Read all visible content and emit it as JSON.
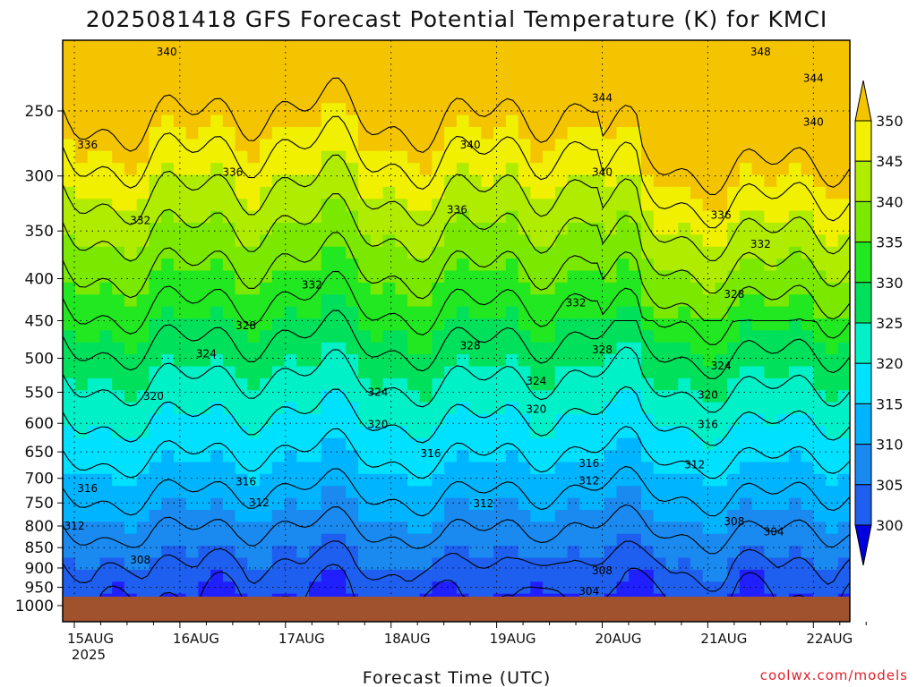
{
  "chart_data": {
    "type": "heatmap",
    "title": "2025081418 GFS Forecast Potential Temperature (K) for KMCI",
    "xlabel": "Forecast Time (UTC)",
    "ylabel": "",
    "y_scale": "log",
    "y_reversed": true,
    "ylim": [
      1000,
      200
    ],
    "y_ticks": [
      250,
      300,
      350,
      400,
      450,
      500,
      550,
      600,
      650,
      700,
      750,
      800,
      850,
      900,
      950,
      1000
    ],
    "x_range": [
      "2025-08-15T00",
      "2025-08-22T12"
    ],
    "x_ticks": [
      {
        "date": "2025-08-15T00",
        "label": "15AUG",
        "sublabel": "2025"
      },
      {
        "date": "2025-08-16T00",
        "label": "16AUG"
      },
      {
        "date": "2025-08-17T00",
        "label": "17AUG"
      },
      {
        "date": "2025-08-18T00",
        "label": "18AUG"
      },
      {
        "date": "2025-08-19T00",
        "label": "19AUG"
      },
      {
        "date": "2025-08-20T00",
        "label": "20AUG"
      },
      {
        "date": "2025-08-21T00",
        "label": "21AUG"
      },
      {
        "date": "2025-08-22T00",
        "label": "22AUG"
      }
    ],
    "grid": true,
    "ground_level_hpa": 975,
    "ground_color": "#a0522d",
    "colorbar": {
      "levels": [
        300,
        305,
        310,
        315,
        320,
        325,
        330,
        335,
        340,
        345,
        350
      ],
      "labels": [
        "300",
        "305",
        "310",
        "315",
        "320",
        "325",
        "330",
        "335",
        "340",
        "345",
        "350"
      ],
      "colors": [
        "#1f1fff",
        "#1f5fef",
        "#1a8af0",
        "#00b4ff",
        "#00e1ff",
        "#00f0c8",
        "#00e05a",
        "#21e821",
        "#7be800",
        "#b0ec00",
        "#f0f000",
        "#f5c400"
      ],
      "extend": "both"
    },
    "contour_interval": 4,
    "contour_labels": [
      {
        "time": "2025-08-15T21",
        "hpa": 212,
        "value": "340"
      },
      {
        "time": "2025-08-18T18",
        "hpa": 275,
        "value": "340"
      },
      {
        "time": "2025-08-20T00",
        "hpa": 241,
        "value": "344"
      },
      {
        "time": "2025-08-21T12",
        "hpa": 212,
        "value": "348"
      },
      {
        "time": "2025-08-22T00",
        "hpa": 228,
        "value": "344"
      },
      {
        "time": "2025-08-22T00",
        "hpa": 258,
        "value": "340"
      },
      {
        "time": "2025-08-20T00",
        "hpa": 297,
        "value": "340"
      },
      {
        "time": "2025-08-15T03",
        "hpa": 275,
        "value": "336"
      },
      {
        "time": "2025-08-16T12",
        "hpa": 297,
        "value": "336"
      },
      {
        "time": "2025-08-18T15",
        "hpa": 330,
        "value": "336"
      },
      {
        "time": "2025-08-21T03",
        "hpa": 335,
        "value": "336"
      },
      {
        "time": "2025-08-15T15",
        "hpa": 340,
        "value": "332"
      },
      {
        "time": "2025-08-17T06",
        "hpa": 407,
        "value": "332"
      },
      {
        "time": "2025-08-19T18",
        "hpa": 428,
        "value": "332"
      },
      {
        "time": "2025-08-21T12",
        "hpa": 363,
        "value": "332"
      },
      {
        "time": "2025-08-16T15",
        "hpa": 456,
        "value": "328"
      },
      {
        "time": "2025-08-18T18",
        "hpa": 483,
        "value": "328"
      },
      {
        "time": "2025-08-20T00",
        "hpa": 488,
        "value": "328"
      },
      {
        "time": "2025-08-21T06",
        "hpa": 418,
        "value": "328"
      },
      {
        "time": "2025-08-16T06",
        "hpa": 494,
        "value": "324"
      },
      {
        "time": "2025-08-17T21",
        "hpa": 550,
        "value": "324"
      },
      {
        "time": "2025-08-19T09",
        "hpa": 533,
        "value": "324"
      },
      {
        "time": "2025-08-21T03",
        "hpa": 511,
        "value": "324"
      },
      {
        "time": "2025-08-15T18",
        "hpa": 556,
        "value": "320"
      },
      {
        "time": "2025-08-17T21",
        "hpa": 602,
        "value": "320"
      },
      {
        "time": "2025-08-19T09",
        "hpa": 577,
        "value": "320"
      },
      {
        "time": "2025-08-21T00",
        "hpa": 554,
        "value": "320"
      },
      {
        "time": "2025-08-15T03",
        "hpa": 720,
        "value": "316"
      },
      {
        "time": "2025-08-16T15",
        "hpa": 707,
        "value": "316"
      },
      {
        "time": "2025-08-18T09",
        "hpa": 653,
        "value": "316"
      },
      {
        "time": "2025-08-19T21",
        "hpa": 671,
        "value": "316"
      },
      {
        "time": "2025-08-21T00",
        "hpa": 602,
        "value": "316"
      },
      {
        "time": "2025-08-15T00",
        "hpa": 800,
        "value": "312"
      },
      {
        "time": "2025-08-16T18",
        "hpa": 750,
        "value": "312"
      },
      {
        "time": "2025-08-18T21",
        "hpa": 751,
        "value": "312"
      },
      {
        "time": "2025-08-19T21",
        "hpa": 705,
        "value": "312"
      },
      {
        "time": "2025-08-20T21",
        "hpa": 674,
        "value": "312"
      },
      {
        "time": "2025-08-15T15",
        "hpa": 880,
        "value": "308"
      },
      {
        "time": "2025-08-20T00",
        "hpa": 907,
        "value": "308"
      },
      {
        "time": "2025-08-21T06",
        "hpa": 790,
        "value": "308"
      },
      {
        "time": "2025-08-19T21",
        "hpa": 961,
        "value": "304"
      },
      {
        "time": "2025-08-21T15",
        "hpa": 813,
        "value": "304"
      }
    ]
  },
  "credit": {
    "text": "coolwx.com/models",
    "color": "#e0202a"
  }
}
